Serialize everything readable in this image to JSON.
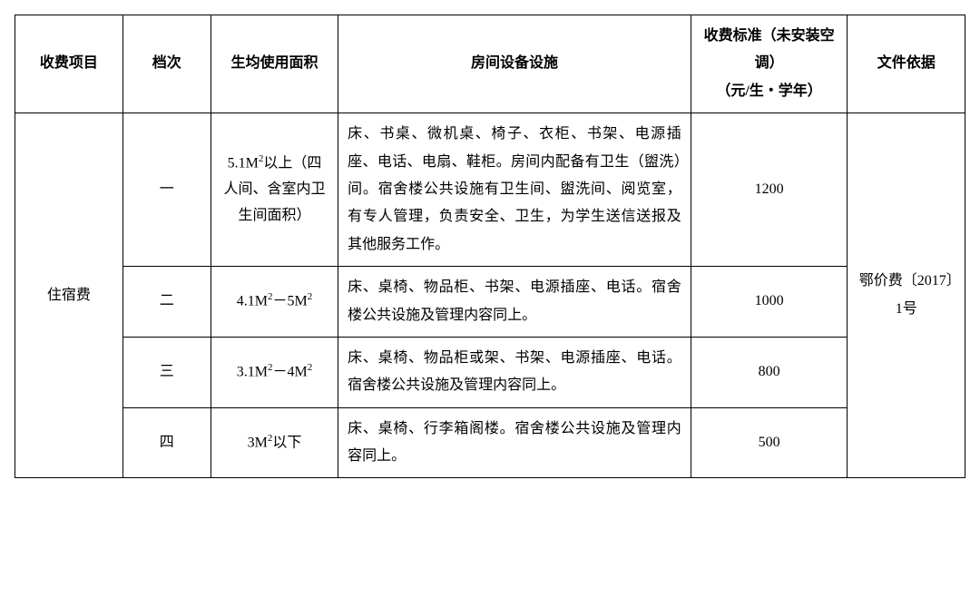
{
  "table": {
    "headers": {
      "item": "收费项目",
      "level": "档次",
      "area": "生均使用面积",
      "equip": "房间设备设施",
      "fee_l1": "收费标准（未安装空调）",
      "fee_l2": "（元/生・学年）",
      "doc": "文件依据"
    },
    "category": "住宿费",
    "document": "鄂价费〔2017〕1号",
    "columns": {
      "widths": [
        110,
        90,
        130,
        360,
        160,
        120
      ]
    },
    "rows": [
      {
        "level": "一",
        "area_pre": "5.1M",
        "area_sup": "2",
        "area_post": "以上（四人间、含室内卫生间面积）",
        "equip": "床、书桌、微机桌、椅子、衣柜、书架、电源插座、电话、电扇、鞋柜。房间内配备有卫生（盥洗）间。宿舍楼公共设施有卫生间、盥洗间、阅览室，有专人管理，负责安全、卫生，为学生送信送报及其他服务工作。",
        "fee": "1200"
      },
      {
        "level": "二",
        "area_pre": "4.1M",
        "area_sup": "2",
        "area_mid": "－5M",
        "area_sup2": "2",
        "equip": "床、桌椅、物品柜、书架、电源插座、电话。宿舍楼公共设施及管理内容同上。",
        "fee": "1000"
      },
      {
        "level": "三",
        "area_pre": "3.1M",
        "area_sup": "2",
        "area_mid": "－4M",
        "area_sup2": "2",
        "equip": "床、桌椅、物品柜或架、书架、电源插座、电话。宿舍楼公共设施及管理内容同上。",
        "fee": "800"
      },
      {
        "level": "四",
        "area_pre": "3M",
        "area_sup": "2",
        "area_post": "以下",
        "equip": "床、桌椅、行李箱阁楼。宿舍楼公共设施及管理内容同上。",
        "fee": "500"
      }
    ],
    "style": {
      "border_color": "#000000",
      "background_color": "#ffffff",
      "text_color": "#000000",
      "font_size": 16,
      "line_height": 1.9,
      "font_family": "SimSun"
    }
  }
}
